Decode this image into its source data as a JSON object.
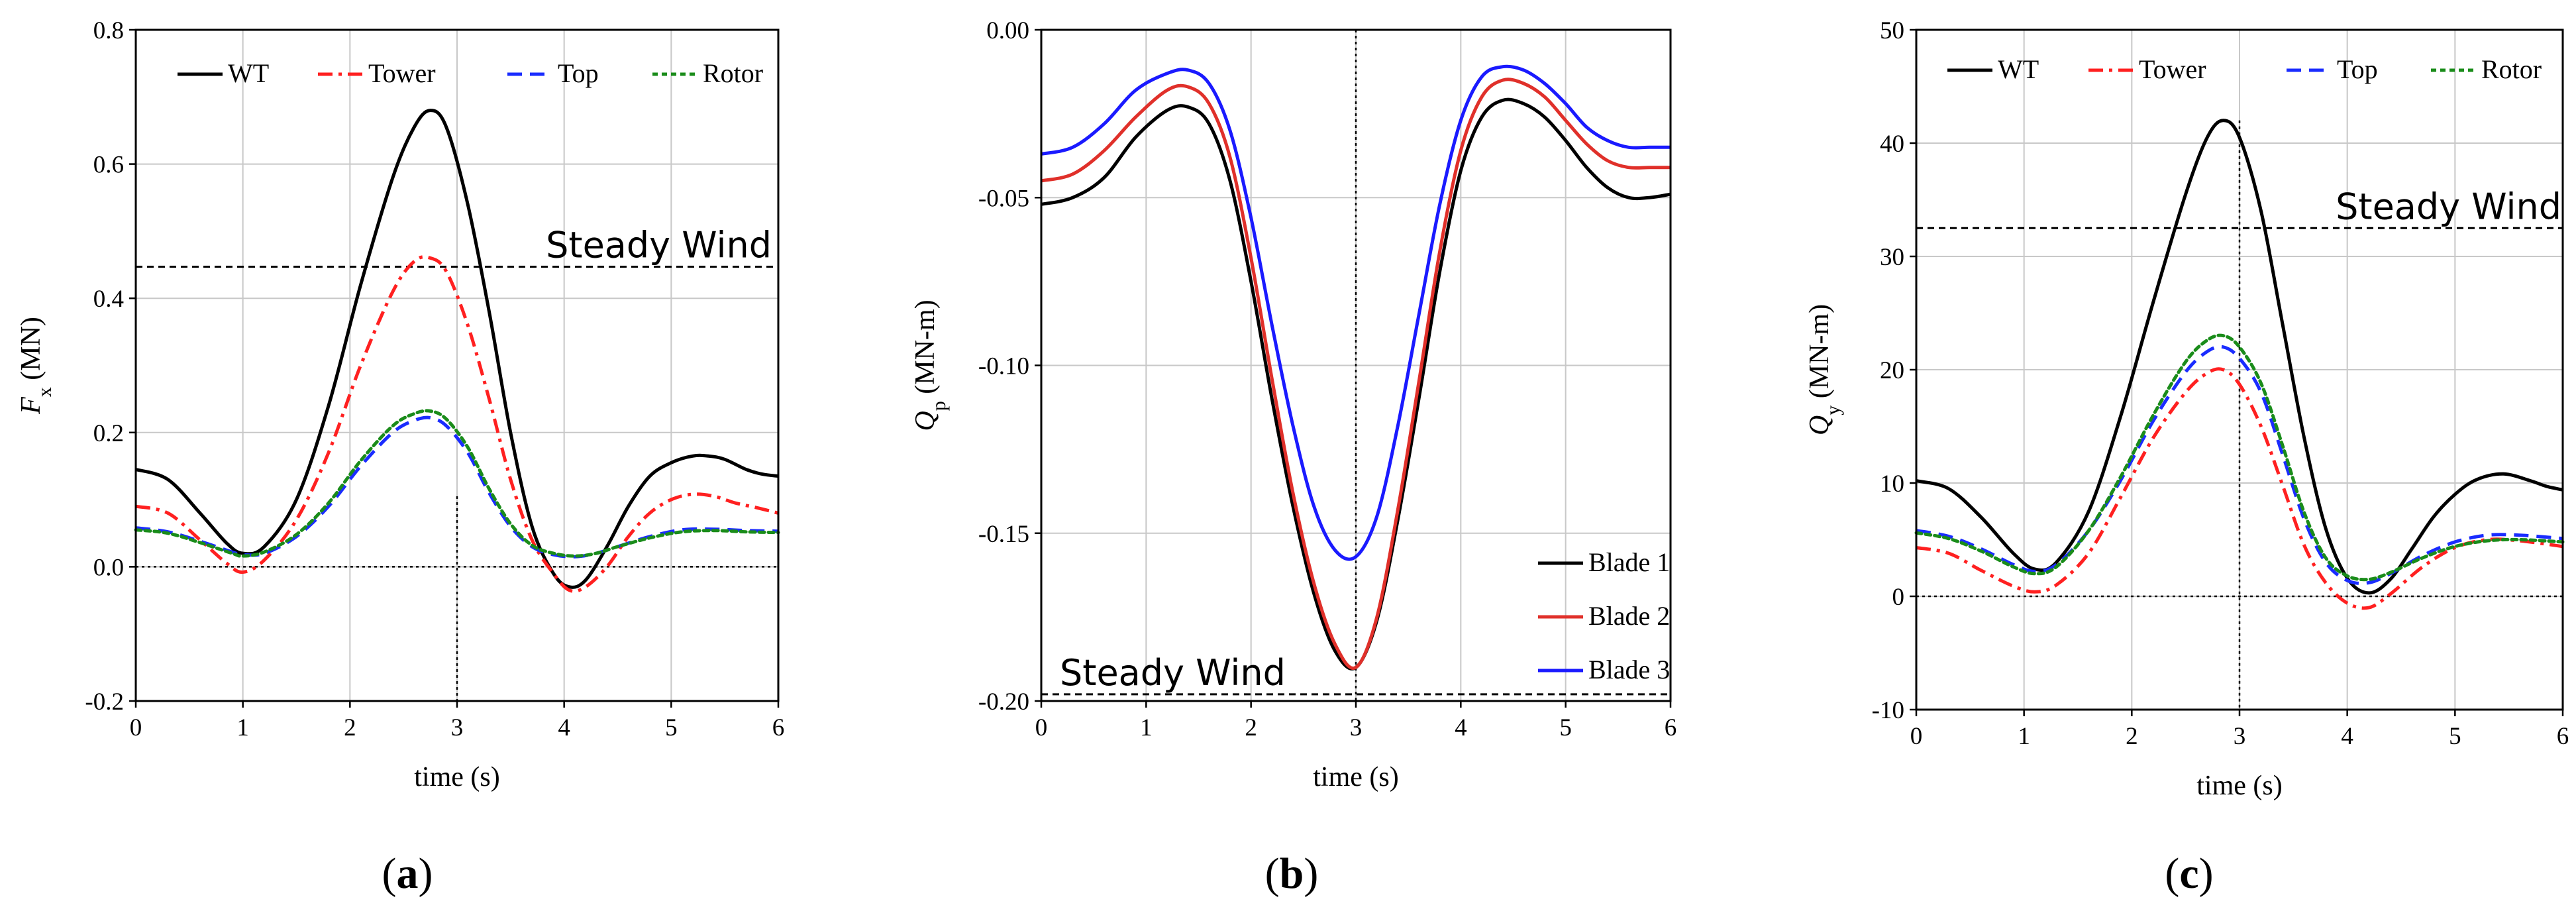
{
  "chart_data": [
    {
      "type": "line",
      "panel_label": {
        "open": "(",
        "letter": "a",
        "close": ")"
      },
      "xlabel": "time (s)",
      "ylabel": {
        "symbol": "F",
        "sub": "x",
        "unit": " (MN)"
      },
      "xlim": [
        0,
        6
      ],
      "ylim": [
        -0.2,
        0.8
      ],
      "xticks": [
        0,
        1,
        2,
        3,
        4,
        5,
        6
      ],
      "xtick_labels": [
        "0",
        "1",
        "2",
        "3",
        "4",
        "5",
        "6"
      ],
      "yticks": [
        -0.2,
        0.0,
        0.2,
        0.4,
        0.6,
        0.8
      ],
      "ytick_labels": [
        "-0.2",
        "0.0",
        "0.2",
        "0.4",
        "0.6",
        "0.8"
      ],
      "grid": true,
      "legend_position": "top",
      "series": [
        {
          "name": "WT",
          "color": "#000000",
          "dash": "solid",
          "x": [
            0,
            0.3,
            0.6,
            0.85,
            1.0,
            1.2,
            1.5,
            1.8,
            2.1,
            2.4,
            2.6,
            2.75,
            2.9,
            3.1,
            3.3,
            3.5,
            3.7,
            3.9,
            4.05,
            4.2,
            4.4,
            4.6,
            4.8,
            5.0,
            5.2,
            5.35,
            5.5,
            5.7,
            5.85,
            6.0
          ],
          "y": [
            0.145,
            0.13,
            0.08,
            0.035,
            0.02,
            0.03,
            0.1,
            0.24,
            0.42,
            0.58,
            0.655,
            0.68,
            0.655,
            0.54,
            0.38,
            0.2,
            0.06,
            -0.01,
            -0.03,
            -0.02,
            0.03,
            0.09,
            0.135,
            0.155,
            0.165,
            0.165,
            0.16,
            0.145,
            0.138,
            0.135
          ]
        },
        {
          "name": "Tower",
          "color": "#ff2020",
          "dash": "dashdot",
          "x": [
            0,
            0.3,
            0.6,
            0.85,
            1.0,
            1.2,
            1.5,
            1.8,
            2.1,
            2.4,
            2.6,
            2.75,
            2.9,
            3.1,
            3.3,
            3.5,
            3.7,
            3.9,
            4.05,
            4.2,
            4.4,
            4.6,
            4.8,
            5.0,
            5.2,
            5.4,
            5.6,
            5.8,
            6.0
          ],
          "y": [
            0.09,
            0.08,
            0.04,
            0.005,
            -0.008,
            0.01,
            0.07,
            0.17,
            0.3,
            0.41,
            0.455,
            0.46,
            0.44,
            0.36,
            0.25,
            0.13,
            0.04,
            -0.01,
            -0.035,
            -0.03,
            0.0,
            0.045,
            0.08,
            0.1,
            0.108,
            0.105,
            0.095,
            0.088,
            0.08
          ]
        },
        {
          "name": "Top",
          "color": "#1a2cff",
          "dash": "dashed",
          "x": [
            0,
            0.3,
            0.6,
            0.9,
            1.0,
            1.2,
            1.5,
            1.8,
            2.1,
            2.4,
            2.6,
            2.75,
            2.9,
            3.1,
            3.3,
            3.5,
            3.7,
            3.9,
            4.1,
            4.3,
            4.5,
            4.8,
            5.1,
            5.4,
            5.7,
            6.0
          ],
          "y": [
            0.058,
            0.052,
            0.038,
            0.022,
            0.018,
            0.02,
            0.045,
            0.09,
            0.15,
            0.2,
            0.218,
            0.222,
            0.21,
            0.17,
            0.11,
            0.06,
            0.03,
            0.018,
            0.015,
            0.02,
            0.03,
            0.045,
            0.055,
            0.056,
            0.054,
            0.053
          ]
        },
        {
          "name": "Rotor",
          "color": "#1a8c1a",
          "dash": "dotted",
          "x": [
            0,
            0.3,
            0.6,
            0.9,
            1.0,
            1.2,
            1.5,
            1.8,
            2.1,
            2.4,
            2.6,
            2.75,
            2.9,
            3.1,
            3.3,
            3.5,
            3.7,
            3.9,
            4.1,
            4.3,
            4.5,
            4.8,
            5.1,
            5.4,
            5.7,
            6.0
          ],
          "y": [
            0.055,
            0.05,
            0.036,
            0.02,
            0.016,
            0.022,
            0.048,
            0.095,
            0.158,
            0.21,
            0.228,
            0.232,
            0.22,
            0.178,
            0.116,
            0.064,
            0.032,
            0.02,
            0.016,
            0.02,
            0.03,
            0.043,
            0.052,
            0.054,
            0.052,
            0.051
          ]
        }
      ],
      "reference_lines": [
        {
          "axis": "y",
          "value": 0.447,
          "style": "dashed",
          "label": "Steady Wind"
        },
        {
          "axis": "y",
          "value": 0.0,
          "style": "dotted",
          "label": ""
        },
        {
          "axis": "x",
          "value": 3.0,
          "from": -0.2,
          "to": 0.105,
          "style": "dotted",
          "label": ""
        }
      ]
    },
    {
      "type": "line",
      "panel_label": {
        "open": "(",
        "letter": "b",
        "close": ")"
      },
      "xlabel": "time (s)",
      "ylabel": {
        "symbol": "Q",
        "sub": "p",
        "unit": " (MN-m)"
      },
      "xlim": [
        0,
        6
      ],
      "ylim": [
        -0.2,
        0.0
      ],
      "xticks": [
        0,
        1,
        2,
        3,
        4,
        5,
        6
      ],
      "xtick_labels": [
        "0",
        "1",
        "2",
        "3",
        "4",
        "5",
        "6"
      ],
      "yticks": [
        -0.2,
        -0.15,
        -0.1,
        -0.05,
        0.0
      ],
      "ytick_labels": [
        "-0.20",
        "-0.15",
        "-0.10",
        "-0.05",
        "0.00"
      ],
      "grid": true,
      "legend_position": "bottom-right",
      "series": [
        {
          "name": "Blade 1",
          "color": "#000000",
          "dash": "solid",
          "x": [
            0,
            0.3,
            0.6,
            0.9,
            1.2,
            1.4,
            1.6,
            1.8,
            2.0,
            2.2,
            2.4,
            2.6,
            2.8,
            3.0,
            3.2,
            3.4,
            3.6,
            3.8,
            4.0,
            4.2,
            4.4,
            4.6,
            4.8,
            5.0,
            5.2,
            5.4,
            5.6,
            5.8,
            6.0
          ],
          "y": [
            -0.052,
            -0.05,
            -0.044,
            -0.032,
            -0.024,
            -0.023,
            -0.028,
            -0.045,
            -0.075,
            -0.11,
            -0.142,
            -0.168,
            -0.185,
            -0.19,
            -0.176,
            -0.146,
            -0.11,
            -0.072,
            -0.042,
            -0.026,
            -0.021,
            -0.022,
            -0.026,
            -0.033,
            -0.041,
            -0.047,
            -0.05,
            -0.05,
            -0.049
          ]
        },
        {
          "name": "Blade 2",
          "color": "#e0302a",
          "dash": "solid",
          "x": [
            0,
            0.3,
            0.6,
            0.9,
            1.2,
            1.4,
            1.6,
            1.8,
            2.0,
            2.2,
            2.4,
            2.6,
            2.8,
            3.0,
            3.2,
            3.4,
            3.6,
            3.8,
            4.0,
            4.2,
            4.4,
            4.6,
            4.8,
            5.0,
            5.2,
            5.4,
            5.6,
            5.8,
            6.0
          ],
          "y": [
            -0.045,
            -0.043,
            -0.036,
            -0.026,
            -0.018,
            -0.017,
            -0.022,
            -0.038,
            -0.068,
            -0.104,
            -0.138,
            -0.165,
            -0.183,
            -0.19,
            -0.175,
            -0.143,
            -0.105,
            -0.066,
            -0.036,
            -0.02,
            -0.015,
            -0.016,
            -0.02,
            -0.027,
            -0.034,
            -0.039,
            -0.041,
            -0.041,
            -0.041
          ]
        },
        {
          "name": "Blade 3",
          "color": "#1a1aff",
          "dash": "solid",
          "x": [
            0,
            0.3,
            0.6,
            0.9,
            1.2,
            1.4,
            1.6,
            1.8,
            2.0,
            2.2,
            2.4,
            2.6,
            2.8,
            3.0,
            3.2,
            3.4,
            3.6,
            3.8,
            4.0,
            4.2,
            4.4,
            4.6,
            4.8,
            5.0,
            5.2,
            5.4,
            5.6,
            5.8,
            6.0
          ],
          "y": [
            -0.037,
            -0.035,
            -0.028,
            -0.018,
            -0.013,
            -0.012,
            -0.016,
            -0.03,
            -0.056,
            -0.088,
            -0.118,
            -0.142,
            -0.155,
            -0.157,
            -0.145,
            -0.118,
            -0.085,
            -0.052,
            -0.027,
            -0.014,
            -0.011,
            -0.012,
            -0.016,
            -0.022,
            -0.029,
            -0.033,
            -0.035,
            -0.035,
            -0.035
          ]
        }
      ],
      "reference_lines": [
        {
          "axis": "y",
          "value": -0.198,
          "style": "dashed",
          "label": "Steady Wind"
        },
        {
          "axis": "x",
          "value": 3.0,
          "from": -0.2,
          "to": 0.0,
          "style": "dotted",
          "label": ""
        }
      ]
    },
    {
      "type": "line",
      "panel_label": {
        "open": "(",
        "letter": "c",
        "close": ")"
      },
      "xlabel": "time (s)",
      "ylabel": {
        "symbol": "Q",
        "sub": "y",
        "unit": " (MN-m)"
      },
      "xlim": [
        0,
        6
      ],
      "ylim": [
        -10,
        50
      ],
      "xticks": [
        0,
        1,
        2,
        3,
        4,
        5,
        6
      ],
      "xtick_labels": [
        "0",
        "1",
        "2",
        "3",
        "4",
        "5",
        "6"
      ],
      "yticks": [
        -10,
        0,
        10,
        20,
        30,
        40,
        50
      ],
      "ytick_labels": [
        "-10",
        "0",
        "10",
        "20",
        "30",
        "40",
        "50"
      ],
      "grid": true,
      "legend_position": "top",
      "series": [
        {
          "name": "WT",
          "color": "#000000",
          "dash": "solid",
          "x": [
            0,
            0.3,
            0.6,
            0.9,
            1.1,
            1.3,
            1.6,
            1.9,
            2.2,
            2.5,
            2.7,
            2.85,
            3.0,
            3.2,
            3.4,
            3.6,
            3.8,
            4.0,
            4.2,
            4.4,
            4.6,
            4.8,
            5.0,
            5.2,
            5.45,
            5.7,
            5.85,
            6.0
          ],
          "y": [
            10.2,
            9.5,
            7.0,
            3.8,
            2.4,
            3.0,
            7.5,
            16.0,
            26.0,
            35.5,
            40.5,
            42.0,
            40.5,
            34.0,
            24.0,
            14.0,
            6.0,
            1.6,
            0.3,
            1.5,
            4.2,
            7.0,
            9.0,
            10.3,
            10.8,
            10.2,
            9.7,
            9.4
          ]
        },
        {
          "name": "Tower",
          "color": "#ff2020",
          "dash": "dashdot",
          "x": [
            0,
            0.3,
            0.6,
            0.9,
            1.1,
            1.3,
            1.6,
            1.9,
            2.2,
            2.5,
            2.7,
            2.85,
            3.0,
            3.2,
            3.4,
            3.6,
            3.8,
            4.0,
            4.2,
            4.4,
            4.7,
            5.0,
            5.3,
            5.6,
            6.0
          ],
          "y": [
            4.3,
            3.8,
            2.3,
            0.9,
            0.4,
            1.0,
            3.8,
            8.8,
            14.0,
            18.0,
            19.7,
            20.0,
            18.7,
            15.0,
            9.8,
            4.5,
            1.2,
            -0.6,
            -1.0,
            0.2,
            2.6,
            4.3,
            5.0,
            4.9,
            4.4
          ]
        },
        {
          "name": "Top",
          "color": "#1a2cff",
          "dash": "dashed",
          "x": [
            0,
            0.3,
            0.6,
            0.9,
            1.1,
            1.3,
            1.6,
            1.9,
            2.2,
            2.5,
            2.7,
            2.85,
            3.0,
            3.2,
            3.4,
            3.6,
            3.8,
            4.0,
            4.2,
            4.4,
            4.7,
            5.0,
            5.3,
            5.6,
            6.0
          ],
          "y": [
            5.8,
            5.3,
            4.2,
            2.8,
            2.2,
            2.8,
            5.8,
            10.3,
            15.5,
            19.8,
            21.6,
            22.0,
            21.0,
            18.0,
            12.5,
            6.8,
            3.0,
            1.4,
            1.2,
            2.0,
            3.6,
            4.8,
            5.4,
            5.4,
            5.1
          ]
        },
        {
          "name": "Rotor",
          "color": "#1a8c1a",
          "dash": "dotted",
          "x": [
            0,
            0.3,
            0.6,
            0.9,
            1.1,
            1.3,
            1.6,
            1.9,
            2.2,
            2.5,
            2.7,
            2.85,
            3.0,
            3.2,
            3.4,
            3.6,
            3.8,
            4.0,
            4.2,
            4.4,
            4.7,
            5.0,
            5.3,
            5.6,
            6.0
          ],
          "y": [
            5.6,
            5.1,
            4.0,
            2.6,
            2.0,
            2.6,
            5.8,
            10.6,
            16.0,
            20.7,
            22.6,
            23.0,
            22.0,
            18.8,
            13.3,
            7.4,
            3.4,
            1.8,
            1.5,
            2.1,
            3.4,
            4.4,
            4.9,
            5.0,
            4.8
          ]
        }
      ],
      "reference_lines": [
        {
          "axis": "y",
          "value": 32.5,
          "style": "dashed",
          "label": "Steady Wind"
        },
        {
          "axis": "y",
          "value": 0,
          "style": "dotted",
          "label": ""
        },
        {
          "axis": "x",
          "value": 3.0,
          "from": -10,
          "to": 42,
          "style": "dotted",
          "label": ""
        }
      ]
    }
  ]
}
